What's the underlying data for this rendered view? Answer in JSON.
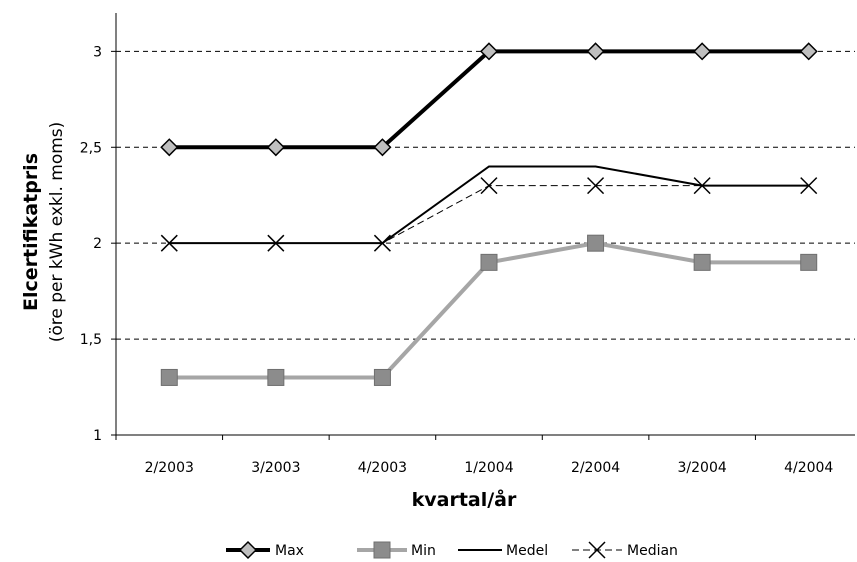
{
  "chart_data": {
    "type": "line",
    "categories": [
      "2/2003",
      "3/2003",
      "4/2003",
      "1/2004",
      "2/2004",
      "3/2004",
      "4/2004"
    ],
    "ylabel_main": "Elcertifikatpris",
    "ylabel_sub": "(öre per kWh exkl. moms)",
    "xlabel": "kvartal/år",
    "ylim": [
      1,
      3.2
    ],
    "yticks": [
      1,
      1.5,
      2,
      2.5,
      3
    ],
    "ytick_labels": [
      "1",
      "1,5",
      "2",
      "2,5",
      "3"
    ],
    "grid": "horizontal dashed",
    "legend_position": "bottom",
    "series": [
      {
        "name": "Max",
        "values": [
          2.5,
          2.5,
          2.5,
          3.0,
          3.0,
          3.0,
          3.0
        ],
        "color": "#000000",
        "marker": "diamond",
        "style": "thick"
      },
      {
        "name": "Min",
        "values": [
          1.3,
          1.3,
          1.3,
          1.9,
          2.0,
          1.9,
          1.9
        ],
        "color": "#a6a6a6",
        "marker": "square",
        "style": "thick"
      },
      {
        "name": "Medel",
        "values": [
          2.0,
          2.0,
          2.0,
          2.4,
          2.4,
          2.3,
          2.3
        ],
        "color": "#000000",
        "marker": "none",
        "style": "solid"
      },
      {
        "name": "Median",
        "values": [
          2.0,
          2.0,
          2.0,
          2.3,
          2.3,
          2.3,
          2.3
        ],
        "color": "#000000",
        "marker": "x",
        "style": "dashed"
      }
    ]
  }
}
